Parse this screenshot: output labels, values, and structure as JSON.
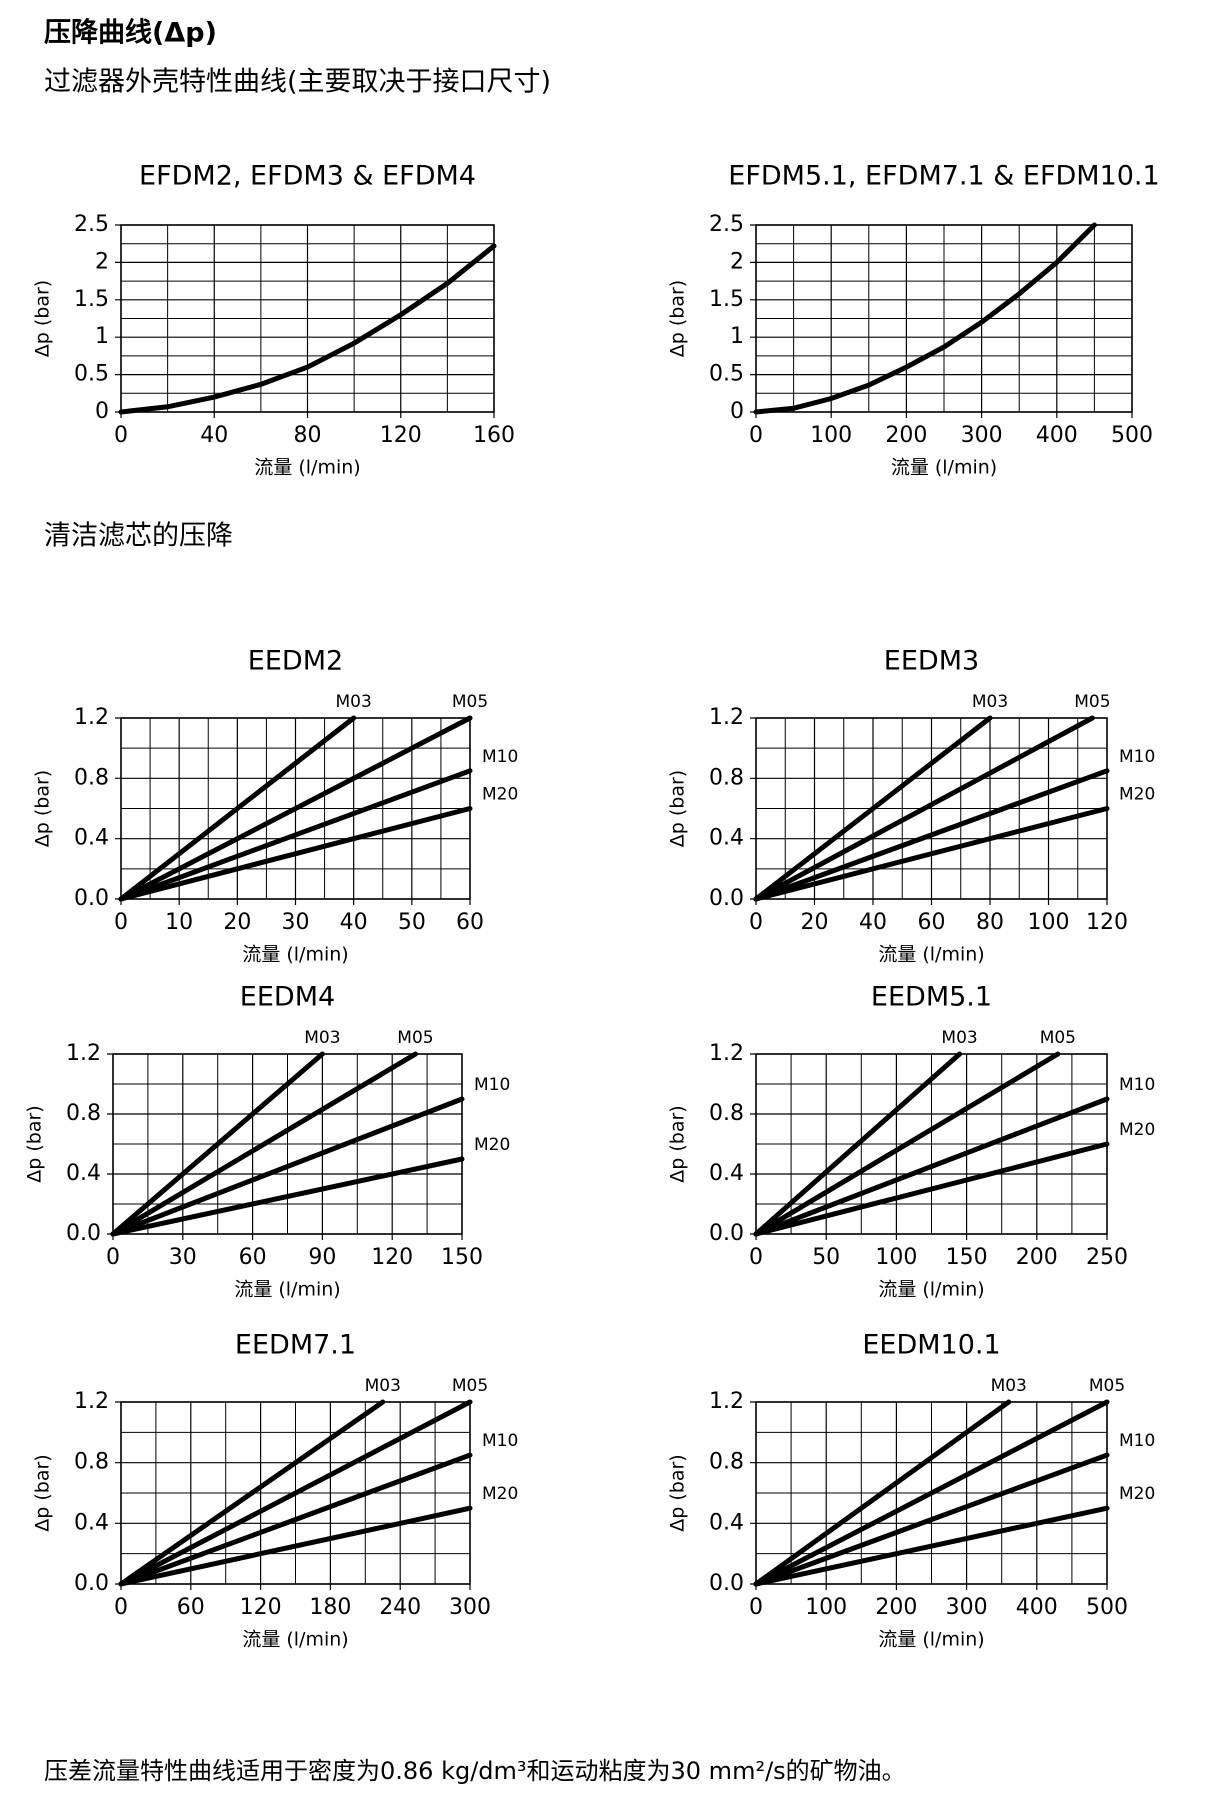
{
  "header": {
    "title": "压降曲线(Δp)",
    "subtitle": "过滤器外壳特性曲线(主要取决于接口尺寸)",
    "section": "清洁滤芯的压降",
    "footnote": "压差流量特性曲线适用于密度为0.86 kg/dm³和运动粘度为30 mm²/s的矿物油。"
  },
  "chart_data": [
    {
      "type": "line",
      "title": "EFDM2, EFDM3 & EFDM4",
      "xlabel": "流量 (l/min)",
      "ylabel": "Δp (bar)",
      "xlim": [
        0,
        160
      ],
      "ylim": [
        0,
        2.5
      ],
      "xticks": [
        0,
        40,
        80,
        120,
        160
      ],
      "yticks": [
        0,
        0.5,
        1,
        1.5,
        2,
        2.5
      ],
      "grid": true,
      "minor_grid": 2,
      "series": [
        {
          "color": "#000000",
          "x": [
            0,
            20,
            40,
            60,
            80,
            100,
            120,
            140,
            160
          ],
          "values": [
            0,
            0.07,
            0.2,
            0.37,
            0.6,
            0.92,
            1.3,
            1.72,
            2.22
          ]
        }
      ]
    },
    {
      "type": "line",
      "title": "EFDM5.1, EFDM7.1 & EFDM10.1",
      "xlabel": "流量 (l/min)",
      "ylabel": "Δp (bar)",
      "xlim": [
        0,
        500
      ],
      "ylim": [
        0,
        2.5
      ],
      "xticks": [
        0,
        100,
        200,
        300,
        400,
        500
      ],
      "yticks": [
        0,
        0.5,
        1,
        1.5,
        2,
        2.5
      ],
      "grid": true,
      "minor_grid": 2,
      "series": [
        {
          "color": "#000000",
          "x": [
            0,
            50,
            100,
            150,
            200,
            250,
            300,
            350,
            400,
            450
          ],
          "values": [
            0,
            0.05,
            0.18,
            0.36,
            0.6,
            0.87,
            1.2,
            1.58,
            2.0,
            2.5
          ]
        }
      ]
    },
    {
      "type": "line",
      "title": "EEDM2",
      "xlabel": "流量 (l/min)",
      "ylabel": "Δp (bar)",
      "xlim": [
        0,
        60
      ],
      "ylim": [
        0,
        1.2
      ],
      "xticks": [
        0,
        10,
        20,
        30,
        40,
        50,
        60
      ],
      "yticks": [
        {
          "value": 0,
          "label": "0.0"
        },
        0.4,
        0.8,
        1.2
      ],
      "grid": true,
      "minor_grid": 2,
      "series": [
        {
          "name": "M03",
          "color": "#000000",
          "x": [
            0,
            40
          ],
          "values": [
            0,
            1.2
          ]
        },
        {
          "name": "M05",
          "color": "#000000",
          "x": [
            0,
            60
          ],
          "values": [
            0,
            1.2
          ]
        },
        {
          "name": "M10",
          "color": "#000000",
          "x": [
            0,
            60
          ],
          "values": [
            0,
            0.85
          ]
        },
        {
          "name": "M20",
          "color": "#000000",
          "x": [
            0,
            60
          ],
          "values": [
            0,
            0.6
          ]
        }
      ]
    },
    {
      "type": "line",
      "title": "EEDM3",
      "xlabel": "流量 (l/min)",
      "ylabel": "Δp (bar)",
      "xlim": [
        0,
        120
      ],
      "ylim": [
        0,
        1.2
      ],
      "xticks": [
        0,
        20,
        40,
        60,
        80,
        100,
        120
      ],
      "yticks": [
        {
          "value": 0,
          "label": "0.0"
        },
        0.4,
        0.8,
        1.2
      ],
      "grid": true,
      "minor_grid": 2,
      "series": [
        {
          "name": "M03",
          "color": "#000000",
          "x": [
            0,
            80
          ],
          "values": [
            0,
            1.2
          ]
        },
        {
          "name": "M05",
          "color": "#000000",
          "x": [
            0,
            115
          ],
          "values": [
            0,
            1.2
          ]
        },
        {
          "name": "M10",
          "color": "#000000",
          "x": [
            0,
            120
          ],
          "values": [
            0,
            0.85
          ]
        },
        {
          "name": "M20",
          "color": "#000000",
          "x": [
            0,
            120
          ],
          "values": [
            0,
            0.6
          ]
        }
      ]
    },
    {
      "type": "line",
      "title": "EEDM4",
      "xlabel": "流量 (l/min)",
      "ylabel": "Δp (bar)",
      "xlim": [
        0,
        150
      ],
      "ylim": [
        0,
        1.2
      ],
      "xticks": [
        0,
        30,
        60,
        90,
        120,
        150
      ],
      "yticks": [
        {
          "value": 0,
          "label": "0.0"
        },
        0.4,
        0.8,
        1.2
      ],
      "grid": true,
      "minor_grid": 2,
      "series": [
        {
          "name": "M03",
          "color": "#000000",
          "x": [
            0,
            90
          ],
          "values": [
            0,
            1.2
          ]
        },
        {
          "name": "M05",
          "color": "#000000",
          "x": [
            0,
            130
          ],
          "values": [
            0,
            1.2
          ]
        },
        {
          "name": "M10",
          "color": "#000000",
          "x": [
            0,
            150
          ],
          "values": [
            0,
            0.9
          ]
        },
        {
          "name": "M20",
          "color": "#000000",
          "x": [
            0,
            150
          ],
          "values": [
            0,
            0.5
          ]
        }
      ]
    },
    {
      "type": "line",
      "title": "EEDM5.1",
      "xlabel": "流量 (l/min)",
      "ylabel": "Δp (bar)",
      "xlim": [
        0,
        250
      ],
      "ylim": [
        0,
        1.2
      ],
      "xticks": [
        0,
        50,
        100,
        150,
        200,
        250
      ],
      "yticks": [
        {
          "value": 0,
          "label": "0.0"
        },
        0.4,
        0.8,
        1.2
      ],
      "grid": true,
      "minor_grid": 2,
      "series": [
        {
          "name": "M03",
          "color": "#000000",
          "x": [
            0,
            145
          ],
          "values": [
            0,
            1.2
          ]
        },
        {
          "name": "M05",
          "color": "#000000",
          "x": [
            0,
            215
          ],
          "values": [
            0,
            1.2
          ]
        },
        {
          "name": "M10",
          "color": "#000000",
          "x": [
            0,
            250
          ],
          "values": [
            0,
            0.9
          ]
        },
        {
          "name": "M20",
          "color": "#000000",
          "x": [
            0,
            250
          ],
          "values": [
            0,
            0.6
          ]
        }
      ]
    },
    {
      "type": "line",
      "title": "EEDM7.1",
      "xlabel": "流量 (l/min)",
      "ylabel": "Δp (bar)",
      "xlim": [
        0,
        300
      ],
      "ylim": [
        0,
        1.2
      ],
      "xticks": [
        0,
        60,
        120,
        180,
        240,
        300
      ],
      "yticks": [
        {
          "value": 0,
          "label": "0.0"
        },
        0.4,
        0.8,
        1.2
      ],
      "grid": true,
      "minor_grid": 2,
      "series": [
        {
          "name": "M03",
          "color": "#000000",
          "x": [
            0,
            225
          ],
          "values": [
            0,
            1.2
          ]
        },
        {
          "name": "M05",
          "color": "#000000",
          "x": [
            0,
            300
          ],
          "values": [
            0,
            1.2
          ]
        },
        {
          "name": "M10",
          "color": "#000000",
          "x": [
            0,
            300
          ],
          "values": [
            0,
            0.85
          ]
        },
        {
          "name": "M20",
          "color": "#000000",
          "x": [
            0,
            300
          ],
          "values": [
            0,
            0.5
          ]
        }
      ]
    },
    {
      "type": "line",
      "title": "EEDM10.1",
      "xlabel": "流量 (l/min)",
      "ylabel": "Δp (bar)",
      "xlim": [
        0,
        500
      ],
      "ylim": [
        0,
        1.2
      ],
      "xticks": [
        0,
        100,
        200,
        300,
        400,
        500
      ],
      "yticks": [
        {
          "value": 0,
          "label": "0.0"
        },
        0.4,
        0.8,
        1.2
      ],
      "grid": true,
      "minor_grid": 2,
      "series": [
        {
          "name": "M03",
          "color": "#000000",
          "x": [
            0,
            360
          ],
          "values": [
            0,
            1.2
          ]
        },
        {
          "name": "M05",
          "color": "#000000",
          "x": [
            0,
            500
          ],
          "values": [
            0,
            1.2
          ]
        },
        {
          "name": "M10",
          "color": "#000000",
          "x": [
            0,
            500
          ],
          "values": [
            0,
            0.85
          ]
        },
        {
          "name": "M20",
          "color": "#000000",
          "x": [
            0,
            500
          ],
          "values": [
            0,
            0.5
          ]
        }
      ]
    }
  ]
}
